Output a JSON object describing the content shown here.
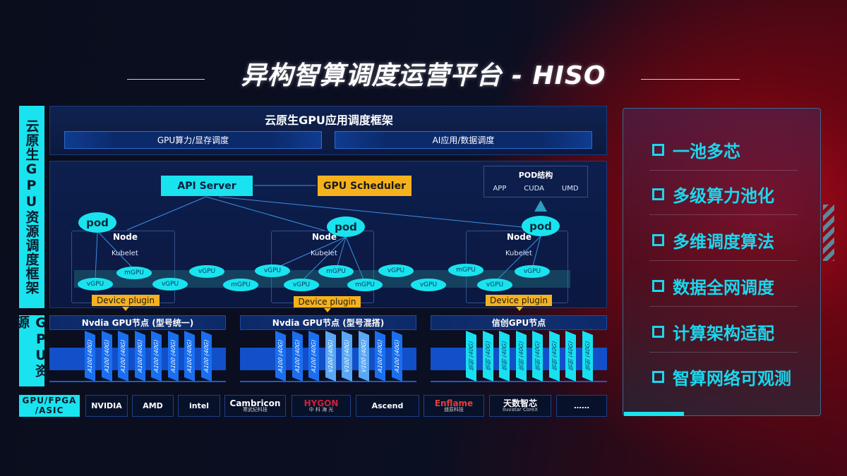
{
  "title": "异构智算调度运营平台 - HISO",
  "side_labels": {
    "framework": "云原生GPU资源调度框架",
    "resources": "GPU资源",
    "hardware": "GPU/FPGA /ASIC"
  },
  "framework": {
    "title": "云原生GPU应用调度框架",
    "left": "GPU算力/显存调度",
    "right": "AI应用/数据调度"
  },
  "diagram": {
    "api_server": "API Server",
    "gpu_scheduler": "GPU Scheduler",
    "pod_structure": {
      "title": "POD结构",
      "items": [
        "APP",
        "CUDA",
        "UMD"
      ]
    },
    "pod": "pod",
    "node": "Node",
    "kubelet": "Kubelet",
    "device_plugin": "Device plugin",
    "gpu_slices": [
      "vGPU",
      "mGPU",
      "vGPU",
      "vGPU",
      "mGPU",
      "vGPU",
      "vGPU",
      "mGPU",
      "mGPU",
      "vGPU",
      "vGPU",
      "mGPU",
      "vGPU",
      "vGPU"
    ]
  },
  "gpu_nodes": [
    {
      "title": "Nvdia GPU节点 (型号统一)",
      "cards": [
        "A100 (40G)",
        "A100 (40G)",
        "A100 (40G)",
        "A100 (40G)",
        "A100 (40G)",
        "A100 (40G)",
        "A100 (40G)",
        "A100 (40G)"
      ],
      "colors": [
        "#1a6ff0",
        "#1a6ff0",
        "#1a6ff0",
        "#1a6ff0",
        "#1a6ff0",
        "#1a6ff0",
        "#1a6ff0",
        "#1a6ff0"
      ]
    },
    {
      "title": "Nvdia GPU节点 (型号混搭)",
      "cards": [
        "A100 (40G)",
        "A100 (40G)",
        "A100 (40G)",
        "V100 (40G)",
        "V100 (40G)",
        "V100 (40G)",
        "A100 (40G)",
        "A100 (40G)"
      ],
      "colors": [
        "#1a6ff0",
        "#1a6ff0",
        "#1a6ff0",
        "#5aa8f5",
        "#5aa8f5",
        "#5aa8f5",
        "#1a6ff0",
        "#1a6ff0"
      ]
    },
    {
      "title": "信创GPU节点",
      "cards": [
        "信创 (40G)",
        "信创 (40G)",
        "信创 (40G)",
        "信创 (40G)",
        "信创 (40G)",
        "信创 (40G)",
        "信创 (40G)",
        "信创 (40G)"
      ],
      "colors": [
        "#18e0f0",
        "#18e0f0",
        "#18e0f0",
        "#18e0f0",
        "#18e0f0",
        "#18e0f0",
        "#18e0f0",
        "#18e0f0"
      ]
    }
  ],
  "vendors": [
    {
      "name": "NVIDIA",
      "color": "#ffffff"
    },
    {
      "name": "AMD",
      "color": "#ffffff"
    },
    {
      "name": "intel",
      "color": "#ffffff"
    },
    {
      "name": "Cambricon",
      "sub": "寒武纪科技",
      "color": "#ffffff"
    },
    {
      "name": "HYGON",
      "sub": "中 科 海 光",
      "color": "#d0203a"
    },
    {
      "name": "Ascend",
      "color": "#ffffff"
    },
    {
      "name": "Enflame",
      "sub": "燧原科技",
      "color": "#e0403a"
    },
    {
      "name": "天数智芯",
      "sub": "Iluvatar CoreX",
      "color": "#ffffff"
    },
    {
      "name": "……",
      "color": "#ffffff"
    }
  ],
  "features": [
    "一池多芯",
    "多级算力池化",
    "多维调度算法",
    "数据全网调度",
    "计算架构适配",
    "智算网络可观测"
  ],
  "colors": {
    "accent_cyan": "#19e3ee",
    "accent_orange": "#f6b21c",
    "card_blue": "#1a6ff0"
  }
}
